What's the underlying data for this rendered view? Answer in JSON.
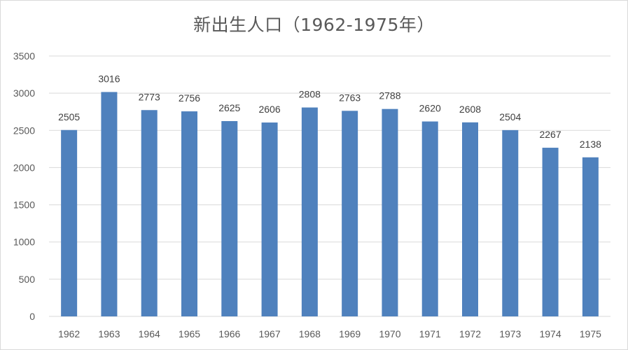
{
  "chart_data": {
    "type": "bar",
    "title": "新出生人口（1962-1975年）",
    "xlabel": "",
    "ylabel": "",
    "categories": [
      "1962",
      "1963",
      "1964",
      "1965",
      "1966",
      "1967",
      "1968",
      "1969",
      "1970",
      "1971",
      "1972",
      "1973",
      "1974",
      "1975"
    ],
    "values": [
      2505,
      3016,
      2773,
      2756,
      2625,
      2606,
      2808,
      2763,
      2788,
      2620,
      2608,
      2504,
      2267,
      2138
    ],
    "ylim": [
      0,
      3500
    ],
    "yticks": [
      "0",
      "500",
      "1000",
      "1500",
      "2000",
      "2500",
      "3000",
      "3500"
    ],
    "grid": true,
    "legend": "none",
    "data_labels": true,
    "colors": {
      "bar": "#4F81BD",
      "grid": "#D9D9D9"
    }
  }
}
